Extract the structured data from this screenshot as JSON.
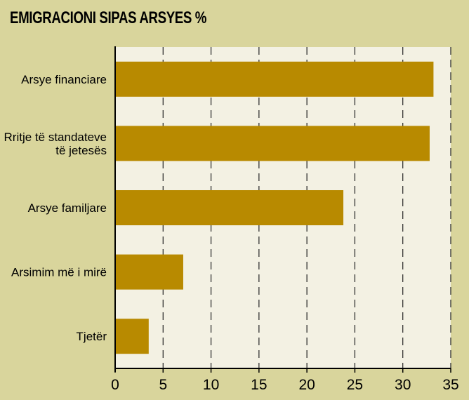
{
  "chart_data": {
    "type": "bar",
    "orientation": "horizontal",
    "title": "EMIGRACIONI SIPAS ARSYES %",
    "categories": [
      [
        "Arsye financiare"
      ],
      [
        "Rritje të standateve",
        "të jetesës"
      ],
      [
        "Arsye familjare"
      ],
      [
        "Arsimim më i mirë"
      ],
      [
        "Tjetër"
      ]
    ],
    "values": [
      33.2,
      32.8,
      23.8,
      7.1,
      3.5
    ],
    "xlim": [
      0,
      35
    ],
    "xticks": [
      0,
      5,
      10,
      15,
      20,
      25,
      30,
      35
    ],
    "grid": "vertical dashed",
    "colors": {
      "background": "#d9d59c",
      "plot_area": "#f3f1e3",
      "bar": "#b88a00"
    }
  }
}
